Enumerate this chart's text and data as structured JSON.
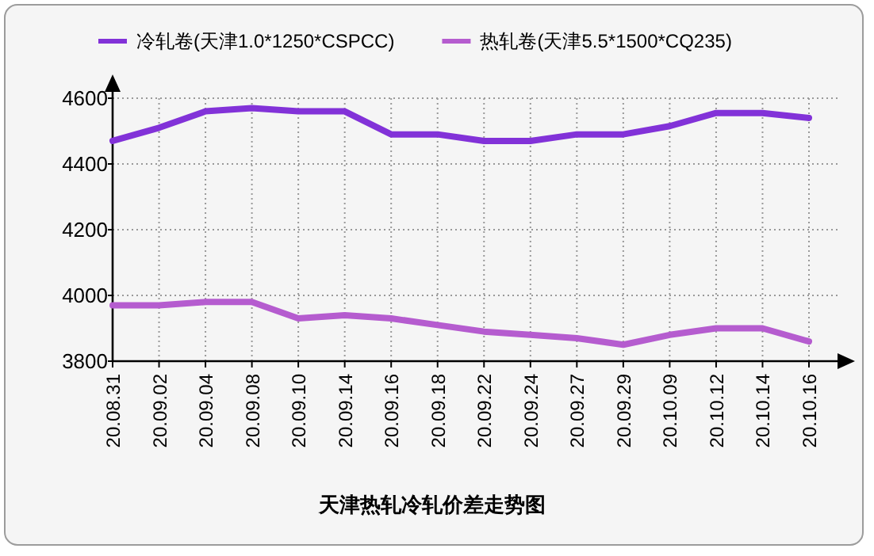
{
  "chart_data": {
    "type": "line",
    "title": "天津热轧冷轧价差走势图",
    "categories": [
      "20.08.31",
      "20.09.02",
      "20.09.04",
      "20.09.08",
      "20.09.10",
      "20.09.14",
      "20.09.16",
      "20.09.18",
      "20.09.22",
      "20.09.24",
      "20.09.27",
      "20.09.29",
      "20.10.09",
      "20.10.12",
      "20.10.14",
      "20.10.16"
    ],
    "series": [
      {
        "name": "冷轧卷(天津1.0*1250*CSPCC)",
        "color": "#8232d8",
        "values": [
          4470,
          4510,
          4560,
          4570,
          4560,
          4560,
          4490,
          4490,
          4470,
          4470,
          4490,
          4490,
          4515,
          4555,
          4555,
          4540
        ]
      },
      {
        "name": "热轧卷(天津5.5*1500*CQ235)",
        "color": "#b55ccf",
        "values": [
          3970,
          3970,
          3980,
          3980,
          3930,
          3940,
          3930,
          3910,
          3890,
          3880,
          3870,
          3850,
          3880,
          3900,
          3900,
          3860
        ]
      }
    ],
    "ylim": [
      3800,
      4600
    ],
    "yticks": [
      3800,
      4000,
      4200,
      4400,
      4600
    ],
    "grid": true,
    "legend": "top"
  }
}
